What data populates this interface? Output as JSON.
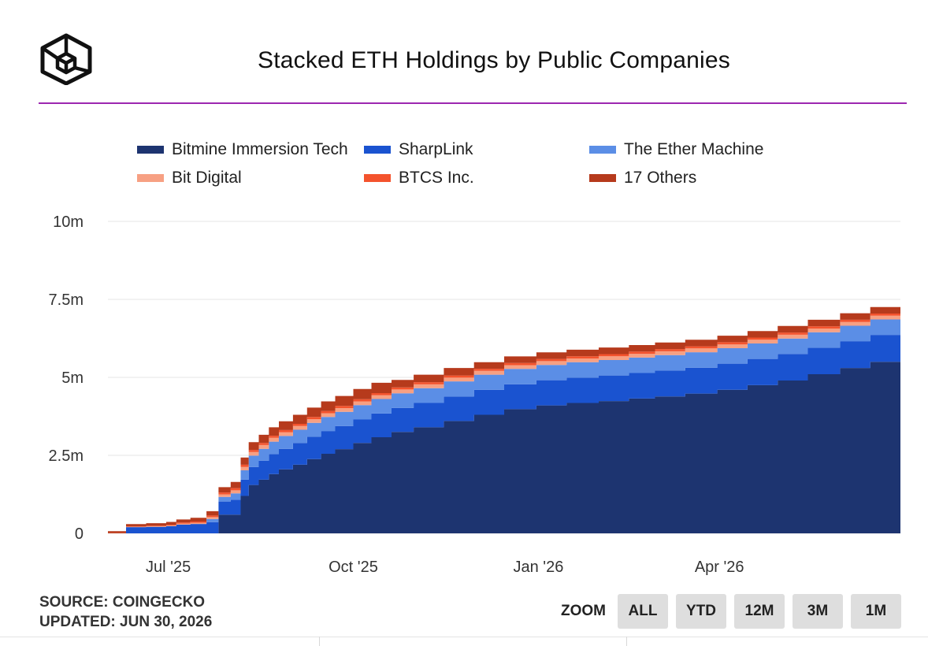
{
  "header": {
    "title": "Stacked ETH Holdings by Public Companies",
    "logo_icon": "coingecko-cube-icon"
  },
  "footer": {
    "source": "SOURCE: COINGECKO",
    "updated": "UPDATED: JUN 30, 2026"
  },
  "zoom": {
    "label": "ZOOM",
    "buttons": [
      "ALL",
      "YTD",
      "12M",
      "3M",
      "1M"
    ]
  },
  "colors": {
    "accent_rule": "#9c27b0",
    "gridline": "#e6e6e6"
  },
  "chart_data": {
    "type": "area",
    "stacked": true,
    "title": "Stacked ETH Holdings by Public Companies",
    "xlabel": "",
    "ylabel": "",
    "yticks": [
      "0",
      "2.5m",
      "5m",
      "7.5m",
      "10m"
    ],
    "ylim": [
      0,
      10000000
    ],
    "xticks": [
      "Jul '25",
      "Oct '25",
      "Jan '26",
      "Apr '26"
    ],
    "x_tick_dates": [
      "2025-07-01",
      "2025-10-01",
      "2026-01-01",
      "2026-04-01"
    ],
    "xlim": [
      "2025-06-01",
      "2026-06-30"
    ],
    "grid": true,
    "legend_position": "top",
    "x": [
      "2025-06-01",
      "2025-06-10",
      "2025-06-20",
      "2025-06-30",
      "2025-07-05",
      "2025-07-12",
      "2025-07-20",
      "2025-07-26",
      "2025-08-01",
      "2025-08-06",
      "2025-08-10",
      "2025-08-15",
      "2025-08-20",
      "2025-08-25",
      "2025-09-01",
      "2025-09-08",
      "2025-09-15",
      "2025-09-22",
      "2025-10-01",
      "2025-10-10",
      "2025-10-20",
      "2025-10-31",
      "2025-11-15",
      "2025-11-30",
      "2025-12-15",
      "2025-12-31",
      "2026-01-15",
      "2026-01-31",
      "2026-02-15",
      "2026-02-28",
      "2026-03-15",
      "2026-03-31",
      "2026-04-15",
      "2026-04-30",
      "2026-05-15",
      "2026-05-31",
      "2026-06-15",
      "2026-06-30"
    ],
    "series": [
      {
        "name": "Bitmine Immersion Tech",
        "color": "#1d3470",
        "values": [
          0,
          0,
          0,
          0,
          0,
          0,
          0,
          600000,
          600000,
          1200000,
          1550000,
          1720000,
          1900000,
          2050000,
          2200000,
          2380000,
          2550000,
          2700000,
          2900000,
          3080000,
          3250000,
          3400000,
          3600000,
          3800000,
          3980000,
          4100000,
          4180000,
          4240000,
          4320000,
          4390000,
          4480000,
          4600000,
          4750000,
          4900000,
          5100000,
          5300000,
          5500000,
          5700000
        ]
      },
      {
        "name": "SharpLink",
        "color": "#1a53d0",
        "values": [
          0,
          200000,
          210000,
          230000,
          280000,
          300000,
          360000,
          420000,
          480000,
          520000,
          580000,
          610000,
          640000,
          660000,
          700000,
          720000,
          730000,
          740000,
          750000,
          760000,
          770000,
          780000,
          790000,
          800000,
          800000,
          810000,
          810000,
          820000,
          820000,
          830000,
          830000,
          840000,
          840000,
          850000,
          850000,
          860000,
          860000,
          870000
        ]
      },
      {
        "name": "The Ether Machine",
        "color": "#5b8ee6",
        "values": [
          0,
          0,
          0,
          0,
          0,
          0,
          100000,
          150000,
          200000,
          300000,
          360000,
          380000,
          400000,
          410000,
          420000,
          440000,
          450000,
          455000,
          460000,
          465000,
          470000,
          475000,
          480000,
          485000,
          490000,
          490000,
          495000,
          495000,
          495000,
          495000,
          495000,
          495000,
          495000,
          495000,
          495000,
          495000,
          495000,
          495000
        ]
      },
      {
        "name": "Bit Digital",
        "color": "#f7a083",
        "values": [
          0,
          10000,
          15000,
          20000,
          30000,
          40000,
          60000,
          80000,
          100000,
          110000,
          115000,
          120000,
          120000,
          120000,
          120000,
          120000,
          120000,
          120000,
          120000,
          120000,
          120000,
          120000,
          120000,
          121000,
          121000,
          121000,
          121000,
          121000,
          121000,
          121000,
          121000,
          121000,
          121000,
          121000,
          121000,
          121000,
          121000,
          121000
        ]
      },
      {
        "name": "BTCS Inc.",
        "color": "#f4532d",
        "values": [
          10000,
          15000,
          20000,
          25000,
          35000,
          40000,
          50000,
          60000,
          70000,
          70000,
          70000,
          70000,
          70000,
          70000,
          70000,
          70000,
          70000,
          70000,
          70000,
          70000,
          70000,
          70000,
          70000,
          70000,
          70000,
          70000,
          70000,
          70000,
          70000,
          70000,
          70000,
          70000,
          70000,
          70000,
          70000,
          70000,
          70000,
          70000
        ]
      },
      {
        "name": "17 Others",
        "color": "#b63a1c",
        "values": [
          60000,
          70000,
          80000,
          90000,
          100000,
          120000,
          140000,
          170000,
          200000,
          230000,
          250000,
          260000,
          270000,
          280000,
          290000,
          300000,
          310000,
          320000,
          330000,
          330000,
          240000,
          240000,
          240000,
          210000,
          210000,
          210000,
          210000,
          210000,
          210000,
          210000,
          210000,
          210000,
          210000,
          210000,
          210000,
          210000,
          210000,
          210000
        ]
      }
    ]
  }
}
